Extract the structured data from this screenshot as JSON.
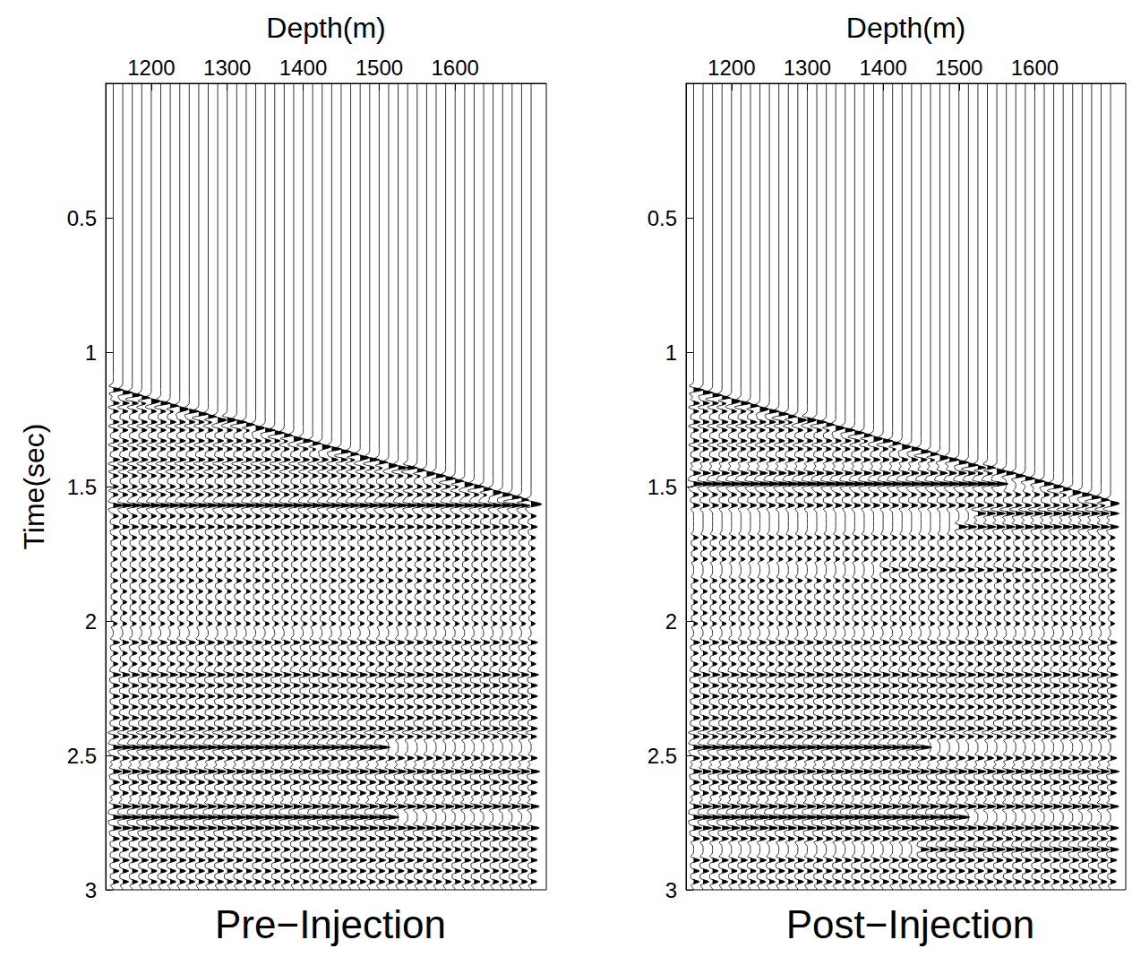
{
  "chart_data": [
    {
      "type": "wiggle",
      "title": "Pre−Injection",
      "x_label": "Depth(m)",
      "y_label": "Time(sec)",
      "xlim": [
        1140,
        1720
      ],
      "xticks": [
        1200,
        1300,
        1400,
        1500,
        1600
      ],
      "ylim": [
        0,
        3
      ],
      "yticks": [
        0.5,
        1,
        1.5,
        2,
        2.5,
        3
      ],
      "depths": [
        1150,
        1162.5,
        1175,
        1187.5,
        1200,
        1212.5,
        1225,
        1237.5,
        1250,
        1262.5,
        1275,
        1287.5,
        1300,
        1312.5,
        1325,
        1337.5,
        1350,
        1362.5,
        1375,
        1387.5,
        1400,
        1412.5,
        1425,
        1437.5,
        1450,
        1462.5,
        1475,
        1487.5,
        1500,
        1512.5,
        1525,
        1537.5,
        1550,
        1562.5,
        1575,
        1587.5,
        1600,
        1612.5,
        1625,
        1637.5,
        1650,
        1662.5,
        1675,
        1687.5,
        1700
      ],
      "first_arrival": [
        1.14,
        1.15,
        1.16,
        1.17,
        1.18,
        1.19,
        1.2,
        1.21,
        1.22,
        1.23,
        1.24,
        1.25,
        1.25,
        1.26,
        1.27,
        1.28,
        1.29,
        1.3,
        1.31,
        1.32,
        1.33,
        1.34,
        1.35,
        1.36,
        1.37,
        1.38,
        1.39,
        1.4,
        1.41,
        1.42,
        1.43,
        1.43,
        1.44,
        1.45,
        1.46,
        1.47,
        1.48,
        1.49,
        1.5,
        1.51,
        1.52,
        1.53,
        1.54,
        1.55,
        1.56
      ],
      "first_arrival_amplitude": 0.9,
      "events": [
        {
          "time": 1.19,
          "amplitude": 0.6,
          "depth_range": [
            1140,
            1720
          ]
        },
        {
          "time": 1.22,
          "amplitude": 0.5,
          "depth_range": [
            1140,
            1720
          ]
        },
        {
          "time": 1.26,
          "amplitude": 0.55,
          "depth_range": [
            1140,
            1720
          ]
        },
        {
          "time": 1.29,
          "amplitude": 0.5,
          "depth_range": [
            1140,
            1720
          ]
        },
        {
          "time": 1.33,
          "amplitude": 0.55,
          "depth_range": [
            1140,
            1720
          ]
        },
        {
          "time": 1.36,
          "amplitude": 0.5,
          "depth_range": [
            1140,
            1720
          ]
        },
        {
          "time": 1.4,
          "amplitude": 0.6,
          "depth_range": [
            1140,
            1720
          ]
        },
        {
          "time": 1.43,
          "amplitude": 0.5,
          "depth_range": [
            1140,
            1720
          ]
        },
        {
          "time": 1.46,
          "amplitude": 0.5,
          "depth_range": [
            1140,
            1720
          ]
        },
        {
          "time": 1.5,
          "amplitude": 0.5,
          "depth_range": [
            1140,
            1720
          ]
        },
        {
          "time": 1.53,
          "amplitude": 0.5,
          "depth_range": [
            1140,
            1720
          ]
        },
        {
          "time": 1.57,
          "amplitude": 1.0,
          "depth_range": [
            1140,
            1720
          ]
        },
        {
          "time": 1.61,
          "amplitude": 0.5,
          "depth_range": [
            1140,
            1720
          ]
        },
        {
          "time": 1.65,
          "amplitude": 0.6,
          "depth_range": [
            1140,
            1720
          ]
        },
        {
          "time": 1.69,
          "amplitude": 0.45,
          "depth_range": [
            1140,
            1720
          ]
        },
        {
          "time": 1.73,
          "amplitude": 0.4,
          "depth_range": [
            1140,
            1720
          ]
        },
        {
          "time": 1.77,
          "amplitude": 0.4,
          "depth_range": [
            1140,
            1720
          ]
        },
        {
          "time": 1.81,
          "amplitude": 0.4,
          "depth_range": [
            1140,
            1720
          ]
        },
        {
          "time": 1.85,
          "amplitude": 0.45,
          "depth_range": [
            1140,
            1720
          ]
        },
        {
          "time": 1.89,
          "amplitude": 0.4,
          "depth_range": [
            1140,
            1720
          ]
        },
        {
          "time": 1.93,
          "amplitude": 0.4,
          "depth_range": [
            1140,
            1720
          ]
        },
        {
          "time": 1.97,
          "amplitude": 0.4,
          "depth_range": [
            1140,
            1720
          ]
        },
        {
          "time": 2.01,
          "amplitude": 0.4,
          "depth_range": [
            1140,
            1720
          ]
        },
        {
          "time": 2.08,
          "amplitude": 0.6,
          "depth_range": [
            1140,
            1720
          ]
        },
        {
          "time": 2.12,
          "amplitude": 0.45,
          "depth_range": [
            1140,
            1720
          ]
        },
        {
          "time": 2.16,
          "amplitude": 0.45,
          "depth_range": [
            1140,
            1720
          ]
        },
        {
          "time": 2.2,
          "amplitude": 0.7,
          "depth_range": [
            1140,
            1720
          ]
        },
        {
          "time": 2.24,
          "amplitude": 0.6,
          "depth_range": [
            1140,
            1720
          ]
        },
        {
          "time": 2.28,
          "amplitude": 0.6,
          "depth_range": [
            1140,
            1720
          ]
        },
        {
          "time": 2.32,
          "amplitude": 0.55,
          "depth_range": [
            1140,
            1720
          ]
        },
        {
          "time": 2.36,
          "amplitude": 0.6,
          "depth_range": [
            1140,
            1720
          ]
        },
        {
          "time": 2.4,
          "amplitude": 0.6,
          "depth_range": [
            1140,
            1720
          ]
        },
        {
          "time": 2.43,
          "amplitude": 0.55,
          "depth_range": [
            1140,
            1720
          ]
        },
        {
          "time": 2.47,
          "amplitude": 1.0,
          "depth_range": [
            1140,
            1500
          ]
        },
        {
          "time": 2.51,
          "amplitude": 0.6,
          "depth_range": [
            1140,
            1720
          ]
        },
        {
          "time": 2.56,
          "amplitude": 0.8,
          "depth_range": [
            1140,
            1720
          ]
        },
        {
          "time": 2.6,
          "amplitude": 0.6,
          "depth_range": [
            1140,
            1720
          ]
        },
        {
          "time": 2.64,
          "amplitude": 0.55,
          "depth_range": [
            1140,
            1720
          ]
        },
        {
          "time": 2.69,
          "amplitude": 0.8,
          "depth_range": [
            1140,
            1720
          ]
        },
        {
          "time": 2.73,
          "amplitude": 1.0,
          "depth_range": [
            1140,
            1520
          ]
        },
        {
          "time": 2.77,
          "amplitude": 0.8,
          "depth_range": [
            1140,
            1720
          ]
        },
        {
          "time": 2.81,
          "amplitude": 0.6,
          "depth_range": [
            1140,
            1720
          ]
        },
        {
          "time": 2.85,
          "amplitude": 0.55,
          "depth_range": [
            1140,
            1720
          ]
        },
        {
          "time": 2.89,
          "amplitude": 0.6,
          "depth_range": [
            1140,
            1720
          ]
        },
        {
          "time": 2.93,
          "amplitude": 0.55,
          "depth_range": [
            1140,
            1720
          ]
        },
        {
          "time": 2.97,
          "amplitude": 0.55,
          "depth_range": [
            1140,
            1720
          ]
        }
      ]
    },
    {
      "type": "wiggle",
      "title": "Post−Injection",
      "x_label": "Depth(m)",
      "xlim": [
        1140,
        1720
      ],
      "xticks": [
        1200,
        1300,
        1400,
        1500,
        1600
      ],
      "ylim": [
        0,
        3
      ],
      "yticks": [
        0.5,
        1,
        1.5,
        2,
        2.5,
        3
      ],
      "depths": [
        1150,
        1162.5,
        1175,
        1187.5,
        1200,
        1212.5,
        1225,
        1237.5,
        1250,
        1262.5,
        1275,
        1287.5,
        1300,
        1312.5,
        1325,
        1337.5,
        1350,
        1362.5,
        1375,
        1387.5,
        1400,
        1412.5,
        1425,
        1437.5,
        1450,
        1462.5,
        1475,
        1487.5,
        1500,
        1512.5,
        1525,
        1537.5,
        1550,
        1562.5,
        1575,
        1587.5,
        1600,
        1612.5,
        1625,
        1637.5,
        1650,
        1662.5,
        1675,
        1687.5,
        1700
      ],
      "first_arrival": [
        1.14,
        1.15,
        1.16,
        1.17,
        1.18,
        1.19,
        1.2,
        1.21,
        1.22,
        1.23,
        1.24,
        1.25,
        1.25,
        1.26,
        1.27,
        1.28,
        1.29,
        1.3,
        1.31,
        1.32,
        1.33,
        1.34,
        1.35,
        1.36,
        1.37,
        1.38,
        1.39,
        1.4,
        1.41,
        1.42,
        1.43,
        1.43,
        1.44,
        1.45,
        1.46,
        1.47,
        1.48,
        1.49,
        1.5,
        1.51,
        1.52,
        1.53,
        1.54,
        1.55,
        1.56
      ],
      "first_arrival_amplitude": 0.9,
      "events": [
        {
          "time": 1.19,
          "amplitude": 0.6,
          "depth_range": [
            1140,
            1720
          ]
        },
        {
          "time": 1.22,
          "amplitude": 0.5,
          "depth_range": [
            1140,
            1720
          ]
        },
        {
          "time": 1.26,
          "amplitude": 0.6,
          "depth_range": [
            1140,
            1720
          ]
        },
        {
          "time": 1.29,
          "amplitude": 0.5,
          "depth_range": [
            1140,
            1720
          ]
        },
        {
          "time": 1.33,
          "amplitude": 0.55,
          "depth_range": [
            1140,
            1720
          ]
        },
        {
          "time": 1.36,
          "amplitude": 0.5,
          "depth_range": [
            1140,
            1720
          ]
        },
        {
          "time": 1.4,
          "amplitude": 0.6,
          "depth_range": [
            1140,
            1720
          ]
        },
        {
          "time": 1.45,
          "amplitude": 0.7,
          "depth_range": [
            1140,
            1720
          ]
        },
        {
          "time": 1.49,
          "amplitude": 1.1,
          "depth_range": [
            1140,
            1560
          ]
        },
        {
          "time": 1.53,
          "amplitude": 0.5,
          "depth_range": [
            1140,
            1720
          ]
        },
        {
          "time": 1.57,
          "amplitude": 0.6,
          "depth_range": [
            1140,
            1720
          ]
        },
        {
          "time": 1.6,
          "amplitude": 0.8,
          "depth_range": [
            1520,
            1720
          ]
        },
        {
          "time": 1.65,
          "amplitude": 0.8,
          "depth_range": [
            1500,
            1720
          ]
        },
        {
          "time": 1.69,
          "amplitude": 0.45,
          "depth_range": [
            1140,
            1720
          ]
        },
        {
          "time": 1.73,
          "amplitude": 0.4,
          "depth_range": [
            1140,
            1720
          ]
        },
        {
          "time": 1.77,
          "amplitude": 0.4,
          "depth_range": [
            1140,
            1720
          ]
        },
        {
          "time": 1.81,
          "amplitude": 0.6,
          "depth_range": [
            1400,
            1720
          ]
        },
        {
          "time": 1.85,
          "amplitude": 0.45,
          "depth_range": [
            1140,
            1720
          ]
        },
        {
          "time": 1.89,
          "amplitude": 0.4,
          "depth_range": [
            1140,
            1720
          ]
        },
        {
          "time": 1.93,
          "amplitude": 0.4,
          "depth_range": [
            1140,
            1720
          ]
        },
        {
          "time": 1.97,
          "amplitude": 0.4,
          "depth_range": [
            1140,
            1720
          ]
        },
        {
          "time": 2.01,
          "amplitude": 0.4,
          "depth_range": [
            1140,
            1720
          ]
        },
        {
          "time": 2.08,
          "amplitude": 0.6,
          "depth_range": [
            1140,
            1720
          ]
        },
        {
          "time": 2.12,
          "amplitude": 0.45,
          "depth_range": [
            1140,
            1720
          ]
        },
        {
          "time": 2.16,
          "amplitude": 0.45,
          "depth_range": [
            1140,
            1720
          ]
        },
        {
          "time": 2.2,
          "amplitude": 0.7,
          "depth_range": [
            1140,
            1720
          ]
        },
        {
          "time": 2.24,
          "amplitude": 0.6,
          "depth_range": [
            1140,
            1720
          ]
        },
        {
          "time": 2.28,
          "amplitude": 0.6,
          "depth_range": [
            1140,
            1720
          ]
        },
        {
          "time": 2.32,
          "amplitude": 0.55,
          "depth_range": [
            1140,
            1720
          ]
        },
        {
          "time": 2.36,
          "amplitude": 0.6,
          "depth_range": [
            1140,
            1720
          ]
        },
        {
          "time": 2.4,
          "amplitude": 0.6,
          "depth_range": [
            1140,
            1720
          ]
        },
        {
          "time": 2.43,
          "amplitude": 0.55,
          "depth_range": [
            1140,
            1720
          ]
        },
        {
          "time": 2.47,
          "amplitude": 1.0,
          "depth_range": [
            1140,
            1450
          ]
        },
        {
          "time": 2.51,
          "amplitude": 0.6,
          "depth_range": [
            1140,
            1720
          ]
        },
        {
          "time": 2.56,
          "amplitude": 0.8,
          "depth_range": [
            1140,
            1720
          ]
        },
        {
          "time": 2.6,
          "amplitude": 0.6,
          "depth_range": [
            1140,
            1720
          ]
        },
        {
          "time": 2.64,
          "amplitude": 0.55,
          "depth_range": [
            1140,
            1720
          ]
        },
        {
          "time": 2.69,
          "amplitude": 0.8,
          "depth_range": [
            1140,
            1720
          ]
        },
        {
          "time": 2.73,
          "amplitude": 1.0,
          "depth_range": [
            1140,
            1500
          ]
        },
        {
          "time": 2.77,
          "amplitude": 0.8,
          "depth_range": [
            1140,
            1720
          ]
        },
        {
          "time": 2.81,
          "amplitude": 0.6,
          "depth_range": [
            1140,
            1720
          ]
        },
        {
          "time": 2.85,
          "amplitude": 0.8,
          "depth_range": [
            1450,
            1720
          ]
        },
        {
          "time": 2.89,
          "amplitude": 0.6,
          "depth_range": [
            1140,
            1720
          ]
        },
        {
          "time": 2.93,
          "amplitude": 0.55,
          "depth_range": [
            1140,
            1720
          ]
        },
        {
          "time": 2.97,
          "amplitude": 0.55,
          "depth_range": [
            1140,
            1720
          ]
        }
      ]
    }
  ]
}
